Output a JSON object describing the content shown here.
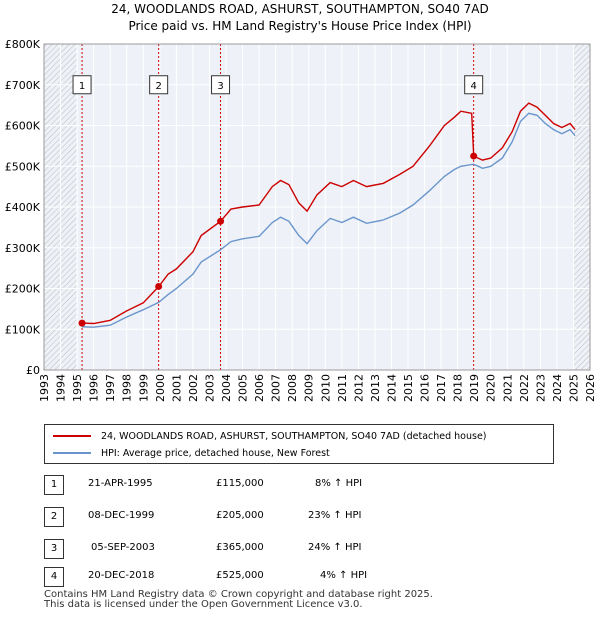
{
  "chart_data": {
    "type": "line",
    "title": "24, WOODLANDS ROAD, ASHURST, SOUTHAMPTON, SO40 7AD",
    "subtitle": "Price paid vs. HM Land Registry's House Price Index (HPI)",
    "xlim": [
      1993,
      2026
    ],
    "ylim": [
      0,
      800000
    ],
    "x_ticks": [
      "1993",
      "1994",
      "1995",
      "1996",
      "1997",
      "1998",
      "1999",
      "2000",
      "2001",
      "2002",
      "2003",
      "2004",
      "2005",
      "2006",
      "2007",
      "2008",
      "2009",
      "2010",
      "2011",
      "2012",
      "2013",
      "2014",
      "2015",
      "2016",
      "2017",
      "2018",
      "2019",
      "2020",
      "2021",
      "2022",
      "2023",
      "2024",
      "2025",
      "2026"
    ],
    "y_ticks": [
      {
        "value": 0,
        "label": "£0"
      },
      {
        "value": 100000,
        "label": "£100K"
      },
      {
        "value": 200000,
        "label": "£200K"
      },
      {
        "value": 300000,
        "label": "£300K"
      },
      {
        "value": 400000,
        "label": "£400K"
      },
      {
        "value": 500000,
        "label": "£500K"
      },
      {
        "value": 600000,
        "label": "£600K"
      },
      {
        "value": 700000,
        "label": "£700K"
      },
      {
        "value": 800000,
        "label": "£800K"
      }
    ],
    "grid": true,
    "hatched_periods": [
      [
        1993,
        1995.0
      ],
      [
        2025.0,
        2026
      ]
    ],
    "series": [
      {
        "name": "24, WOODLANDS ROAD, ASHURST, SOUTHAMPTON, SO40 7AD (detached house)",
        "color": "#cc0000",
        "points": [
          [
            1995.3,
            115000
          ],
          [
            1996,
            114000
          ],
          [
            1997,
            122000
          ],
          [
            1998,
            145000
          ],
          [
            1999,
            165000
          ],
          [
            1999.93,
            205000
          ],
          [
            2000.5,
            235000
          ],
          [
            2001,
            248000
          ],
          [
            2002,
            290000
          ],
          [
            2002.5,
            330000
          ],
          [
            2003.67,
            365000
          ],
          [
            2004.3,
            395000
          ],
          [
            2005,
            400000
          ],
          [
            2006,
            405000
          ],
          [
            2006.8,
            450000
          ],
          [
            2007.3,
            465000
          ],
          [
            2007.8,
            455000
          ],
          [
            2008.4,
            410000
          ],
          [
            2008.9,
            390000
          ],
          [
            2009.5,
            430000
          ],
          [
            2010.3,
            460000
          ],
          [
            2011,
            450000
          ],
          [
            2011.7,
            465000
          ],
          [
            2012.5,
            450000
          ],
          [
            2013.5,
            458000
          ],
          [
            2014.5,
            480000
          ],
          [
            2015.3,
            500000
          ],
          [
            2016.3,
            550000
          ],
          [
            2017.2,
            600000
          ],
          [
            2017.8,
            620000
          ],
          [
            2018.2,
            635000
          ],
          [
            2018.85,
            630000
          ],
          [
            2018.97,
            525000
          ],
          [
            2019.5,
            515000
          ],
          [
            2020,
            520000
          ],
          [
            2020.7,
            545000
          ],
          [
            2021.3,
            585000
          ],
          [
            2021.8,
            635000
          ],
          [
            2022.3,
            655000
          ],
          [
            2022.8,
            645000
          ],
          [
            2023.3,
            625000
          ],
          [
            2023.8,
            605000
          ],
          [
            2024.3,
            595000
          ],
          [
            2024.8,
            605000
          ],
          [
            2025.1,
            590000
          ]
        ]
      },
      {
        "name": "HPI: Average price, detached house, New Forest",
        "color": "#6a95cc",
        "points": [
          [
            1995.3,
            106000
          ],
          [
            1996,
            105000
          ],
          [
            1997,
            110000
          ],
          [
            1998,
            130000
          ],
          [
            1999,
            148000
          ],
          [
            1999.93,
            166000
          ],
          [
            2000.5,
            185000
          ],
          [
            2001,
            200000
          ],
          [
            2002,
            235000
          ],
          [
            2002.5,
            265000
          ],
          [
            2003.67,
            295000
          ],
          [
            2004.3,
            315000
          ],
          [
            2005,
            322000
          ],
          [
            2006,
            328000
          ],
          [
            2006.8,
            362000
          ],
          [
            2007.3,
            375000
          ],
          [
            2007.8,
            365000
          ],
          [
            2008.4,
            330000
          ],
          [
            2008.9,
            310000
          ],
          [
            2009.5,
            342000
          ],
          [
            2010.3,
            372000
          ],
          [
            2011,
            362000
          ],
          [
            2011.7,
            375000
          ],
          [
            2012.5,
            360000
          ],
          [
            2013.5,
            368000
          ],
          [
            2014.5,
            385000
          ],
          [
            2015.3,
            405000
          ],
          [
            2016.3,
            440000
          ],
          [
            2017.2,
            475000
          ],
          [
            2017.8,
            492000
          ],
          [
            2018.2,
            500000
          ],
          [
            2018.97,
            505000
          ],
          [
            2019.5,
            495000
          ],
          [
            2020,
            500000
          ],
          [
            2020.7,
            520000
          ],
          [
            2021.3,
            560000
          ],
          [
            2021.8,
            610000
          ],
          [
            2022.3,
            630000
          ],
          [
            2022.8,
            625000
          ],
          [
            2023.3,
            605000
          ],
          [
            2023.8,
            590000
          ],
          [
            2024.3,
            580000
          ],
          [
            2024.8,
            590000
          ],
          [
            2025.1,
            575000
          ]
        ]
      }
    ],
    "markers": [
      {
        "label": "1",
        "x": 1995.3,
        "y": 115000
      },
      {
        "label": "2",
        "x": 1999.93,
        "y": 205000
      },
      {
        "label": "3",
        "x": 2003.67,
        "y": 365000
      },
      {
        "label": "4",
        "x": 2018.97,
        "y": 525000
      }
    ],
    "marker_label_value": 700000
  },
  "legend": {
    "price_paid": "24, WOODLANDS ROAD, ASHURST, SOUTHAMPTON, SO40 7AD (detached house)",
    "hpi": "HPI: Average price, detached house, New Forest"
  },
  "transactions": [
    {
      "num": "1",
      "date": "21-APR-1995",
      "price": "£115,000",
      "hpi": "8% ↑ HPI"
    },
    {
      "num": "2",
      "date": "08-DEC-1999",
      "price": "£205,000",
      "hpi": "23% ↑ HPI"
    },
    {
      "num": "3",
      "date": "05-SEP-2003",
      "price": "£365,000",
      "hpi": "24% ↑ HPI"
    },
    {
      "num": "4",
      "date": "20-DEC-2018",
      "price": "£525,000",
      "hpi": "4% ↑ HPI"
    }
  ],
  "footer": {
    "line1": "Contains HM Land Registry data © Crown copyright and database right 2025.",
    "line2": "This data is licensed under the Open Government Licence v3.0."
  }
}
